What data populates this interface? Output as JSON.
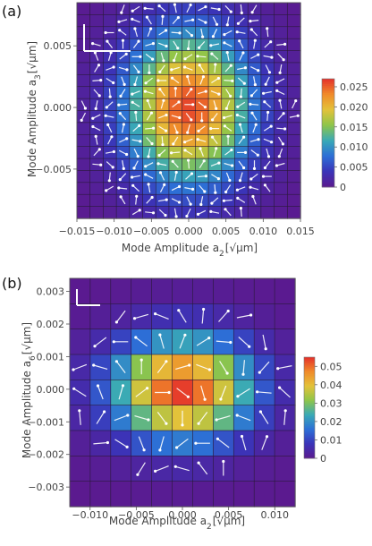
{
  "chart_data": [
    {
      "type": "heatmap",
      "panel_label": "(a)",
      "xlabel": "Mode Amplitude a₂[√μm]",
      "xlabel_main": "Mode Amplitude a",
      "xlabel_sub": "2",
      "xlabel_unit": "μm",
      "ylabel": "Mode Amplitude a₃[√μm]",
      "ylabel_main": "Mode Amplitude a",
      "ylabel_sub": "3",
      "ylabel_unit": "μm",
      "xlim": [
        -0.015,
        0.015
      ],
      "ylim": [
        -0.009,
        0.0085
      ],
      "xticks": [
        "−0.015",
        "−0.010",
        "−0.005",
        "0.000",
        "0.005",
        "0.010",
        "0.015"
      ],
      "yticks": [
        "0.005",
        "0.000",
        "−0.005"
      ],
      "xtick_values": [
        -0.015,
        -0.01,
        -0.005,
        0.0,
        0.005,
        0.01,
        0.015
      ],
      "ytick_values": [
        0.005,
        0.0,
        -0.005
      ],
      "colorbar_range": [
        0,
        0.027
      ],
      "colorbar_ticks": [
        "0.025",
        "0.020",
        "0.015",
        "0.010",
        "0.005",
        "0"
      ],
      "colorbar_tick_values": [
        0.025,
        0.02,
        0.015,
        0.01,
        0.005,
        0
      ],
      "grid": {
        "nx": 17,
        "ny": 18,
        "sigma_x": 0.0058,
        "sigma_y": 0.0043,
        "peak": 0.026
      },
      "colors": {
        "cmap": [
          "#5b1a8f",
          "#3b34b8",
          "#2d6fd6",
          "#39a9b6",
          "#8ec54a",
          "#e3c23a",
          "#f08a2a",
          "#e4302b"
        ]
      }
    },
    {
      "type": "heatmap",
      "panel_label": "(b)",
      "xlabel": "Mode Amplitude a₂[√μm]",
      "xlabel_main": "Mode Amplitude a",
      "xlabel_sub": "2",
      "xlabel_unit": "μm",
      "ylabel": "Mode Amplitude a₆[√μm]",
      "ylabel_main": "Mode Amplitude a",
      "ylabel_sub": "6",
      "ylabel_unit": "μm",
      "xlim": [
        -0.0122,
        0.0122
      ],
      "ylim": [
        -0.0036,
        0.0034
      ],
      "xticks": [
        "−0.010",
        "−0.005",
        "0.000",
        "0.005",
        "0.010"
      ],
      "yticks": [
        "0.003",
        "0.002",
        "0.001",
        "0.000",
        "−0.001",
        "−0.002",
        "−0.003"
      ],
      "xtick_values": [
        -0.01,
        -0.005,
        0.0,
        0.005,
        0.01
      ],
      "ytick_values": [
        0.003,
        0.002,
        0.001,
        0.0,
        -0.001,
        -0.002,
        -0.003
      ],
      "colorbar_range": [
        0,
        0.055
      ],
      "colorbar_ticks": [
        "0.05",
        "0.04",
        "0.03",
        "0.02",
        "0.01",
        "0"
      ],
      "colorbar_tick_values": [
        0.05,
        0.04,
        0.03,
        0.02,
        0.01,
        0
      ],
      "grid": {
        "nx": 11,
        "ny": 9,
        "sigma_x": 0.0052,
        "sigma_y": 0.0011,
        "peak": 0.054
      },
      "colors": {
        "cmap": [
          "#5b1a8f",
          "#3b34b8",
          "#2d6fd6",
          "#39a9b6",
          "#8ec54a",
          "#e3c23a",
          "#f08a2a",
          "#e4302b"
        ]
      }
    }
  ]
}
